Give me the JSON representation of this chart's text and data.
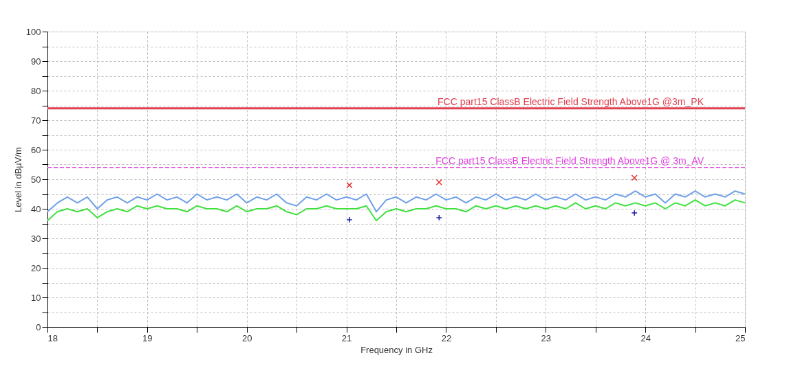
{
  "chart_data": {
    "type": "line",
    "xlabel": "Frequency in GHz",
    "ylabel": "Level in dBµV/m",
    "xlim": [
      18,
      25
    ],
    "ylim": [
      0,
      100
    ],
    "xticks": [
      18,
      {
        "value": 18.5,
        "label": null
      },
      19,
      {
        "value": 19.5,
        "label": null
      },
      20,
      {
        "value": 20.5,
        "label": null
      },
      21,
      {
        "value": 21.5,
        "label": null
      },
      22,
      {
        "value": 22.5,
        "label": null
      },
      23,
      {
        "value": 23.5,
        "label": null
      },
      24,
      {
        "value": 24.5,
        "label": null
      },
      25
    ],
    "yticks": [
      0,
      {
        "value": 5,
        "label": null
      },
      10,
      {
        "value": 15,
        "label": null
      },
      20,
      {
        "value": 25,
        "label": null
      },
      30,
      {
        "value": 35,
        "label": null
      },
      40,
      {
        "value": 45,
        "label": null
      },
      50,
      {
        "value": 55,
        "label": null
      },
      60,
      {
        "value": 65,
        "label": null
      },
      70,
      {
        "value": 75,
        "label": null
      },
      80,
      {
        "value": 85,
        "label": null
      },
      90,
      {
        "value": 95,
        "label": null
      },
      100
    ],
    "grid": true,
    "series": [
      {
        "color": "#6fa0e8",
        "marker": "none",
        "x": [
          18.0,
          18.1,
          18.2,
          18.3,
          18.4,
          18.5,
          18.6,
          18.7,
          18.8,
          18.9,
          19.0,
          19.1,
          19.2,
          19.3,
          19.4,
          19.5,
          19.6,
          19.7,
          19.8,
          19.9,
          20.0,
          20.1,
          20.2,
          20.3,
          20.4,
          20.5,
          20.6,
          20.7,
          20.8,
          20.9,
          21.0,
          21.1,
          21.2,
          21.3,
          21.4,
          21.5,
          21.6,
          21.7,
          21.8,
          21.9,
          22.0,
          22.1,
          22.2,
          22.3,
          22.4,
          22.5,
          22.6,
          22.7,
          22.8,
          22.9,
          23.0,
          23.1,
          23.2,
          23.3,
          23.4,
          23.5,
          23.6,
          23.7,
          23.8,
          23.9,
          24.0,
          24.1,
          24.2,
          24.3,
          24.4,
          24.5,
          24.6,
          24.7,
          24.8,
          24.9,
          25.0
        ],
        "values": [
          39,
          42,
          44,
          42,
          44,
          40,
          43,
          44,
          42,
          44,
          43,
          45,
          43,
          44,
          42,
          45,
          43,
          44,
          43,
          45,
          42,
          44,
          43,
          45,
          42,
          41,
          44,
          43,
          45,
          43,
          44,
          43,
          45,
          39,
          43,
          44,
          42,
          44,
          43,
          45,
          43,
          44,
          42,
          44,
          43,
          45,
          43,
          44,
          43,
          45,
          43,
          44,
          43,
          45,
          43,
          44,
          43,
          45,
          44,
          46,
          44,
          45,
          42,
          45,
          44,
          46,
          44,
          45,
          44,
          46,
          45
        ]
      },
      {
        "color": "#40e040",
        "marker": "none",
        "x": [
          18.0,
          18.1,
          18.2,
          18.3,
          18.4,
          18.5,
          18.6,
          18.7,
          18.8,
          18.9,
          19.0,
          19.1,
          19.2,
          19.3,
          19.4,
          19.5,
          19.6,
          19.7,
          19.8,
          19.9,
          20.0,
          20.1,
          20.2,
          20.3,
          20.4,
          20.5,
          20.6,
          20.7,
          20.8,
          20.9,
          21.0,
          21.1,
          21.2,
          21.3,
          21.4,
          21.5,
          21.6,
          21.7,
          21.8,
          21.9,
          22.0,
          22.1,
          22.2,
          22.3,
          22.4,
          22.5,
          22.6,
          22.7,
          22.8,
          22.9,
          23.0,
          23.1,
          23.2,
          23.3,
          23.4,
          23.5,
          23.6,
          23.7,
          23.8,
          23.9,
          24.0,
          24.1,
          24.2,
          24.3,
          24.4,
          24.5,
          24.6,
          24.7,
          24.8,
          24.9,
          25.0
        ],
        "values": [
          36,
          39,
          40,
          39,
          40,
          37,
          39,
          40,
          39,
          41,
          40,
          41,
          40,
          40,
          39,
          41,
          40,
          40,
          39,
          41,
          39,
          40,
          40,
          41,
          39,
          38,
          40,
          40,
          41,
          40,
          40,
          40,
          41,
          36,
          39,
          40,
          39,
          40,
          40,
          41,
          40,
          40,
          39,
          41,
          40,
          41,
          40,
          41,
          40,
          41,
          40,
          41,
          40,
          42,
          40,
          41,
          40,
          42,
          41,
          42,
          41,
          42,
          40,
          42,
          41,
          43,
          41,
          42,
          41,
          43,
          42
        ]
      },
      {
        "type": "scatter",
        "color": "#e03030",
        "marker": "x",
        "x": [
          21.03,
          21.93,
          23.89
        ],
        "values": [
          48,
          49,
          50.5
        ]
      },
      {
        "type": "scatter",
        "color": "#1a1aa0",
        "marker": "cross",
        "x": [
          21.03,
          21.93,
          23.89
        ],
        "values": [
          36.3,
          37,
          38.6
        ]
      }
    ],
    "ref_lines": [
      {
        "axis": "y",
        "value": 74,
        "label": "FCC part15 ClassB Electric Field Strength Above1G @3m_PK",
        "color": "#e04050",
        "line_style": "solid"
      },
      {
        "axis": "y",
        "value": 54,
        "label": "FCC part15 ClassB Electric Field Strength Above1G @ 3m_AV",
        "color": "#e040e0",
        "line_style": "dashed"
      }
    ]
  }
}
